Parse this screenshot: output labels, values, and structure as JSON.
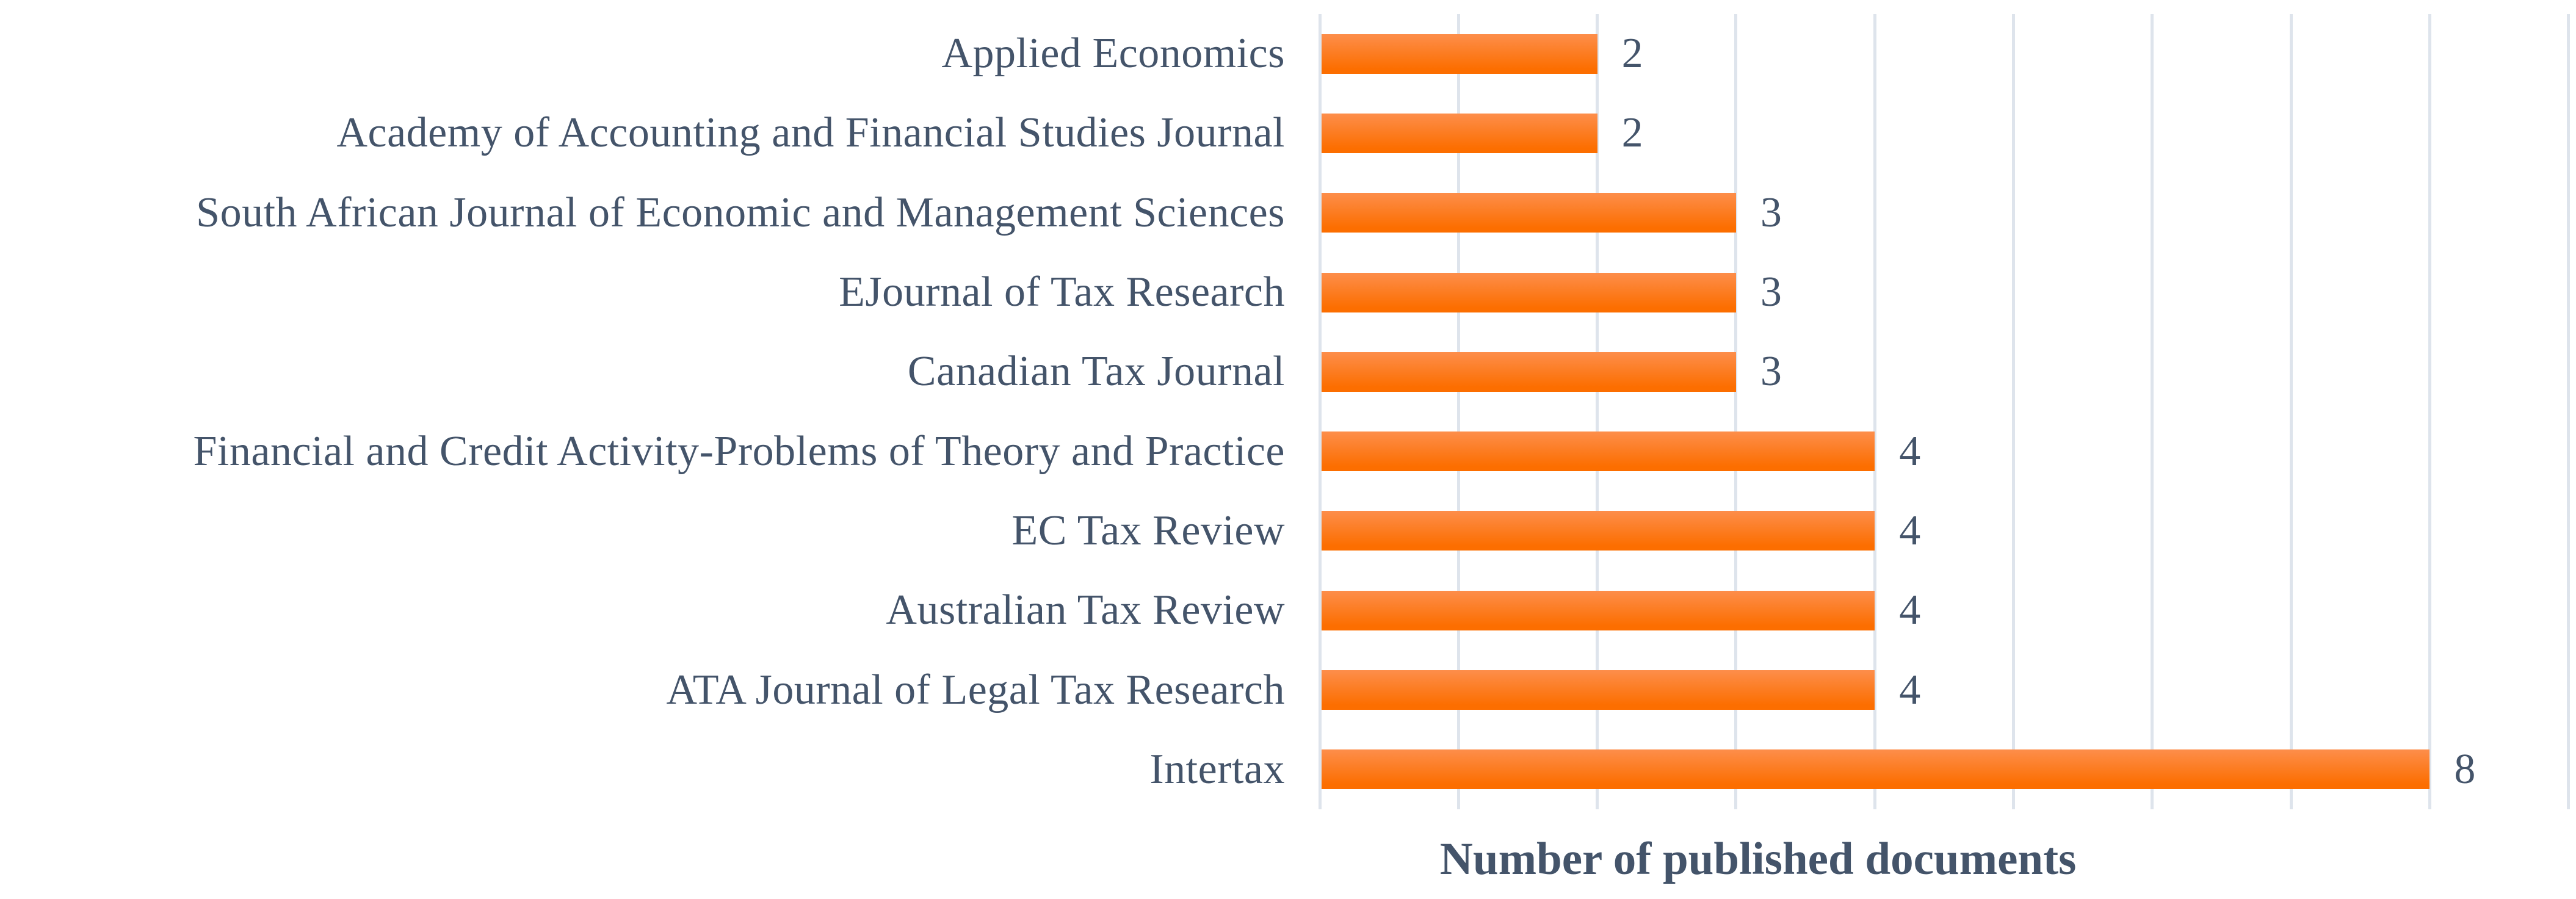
{
  "chart_data": {
    "type": "bar",
    "orientation": "horizontal",
    "title": "",
    "xlabel": "Number of published documents",
    "ylabel": "",
    "categories": [
      "Applied Economics",
      "Academy of Accounting and Financial Studies Journal",
      "South African Journal of Economic and Management Sciences",
      "EJournal of Tax Research",
      "Canadian Tax Journal",
      "Financial and Credit Activity-Problems of Theory and Practice",
      "EC Tax Review",
      "Australian Tax Review",
      "ATA Journal of Legal Tax Research",
      "Intertax"
    ],
    "values": [
      2,
      2,
      3,
      3,
      3,
      4,
      4,
      4,
      4,
      8
    ],
    "data_labels_shown": true,
    "xlim": [
      0,
      9
    ],
    "xticks": [
      0,
      1,
      2,
      3,
      4,
      5,
      6,
      7,
      8,
      9
    ],
    "grid": "vertical-major",
    "legend": "none"
  },
  "colors": {
    "bar_gradient_top": "#FD8E4B",
    "bar_gradient_bottom": "#FC6E00",
    "text": "#44546A",
    "gridline": "#DEE4EC",
    "background": "#FFFFFF"
  }
}
